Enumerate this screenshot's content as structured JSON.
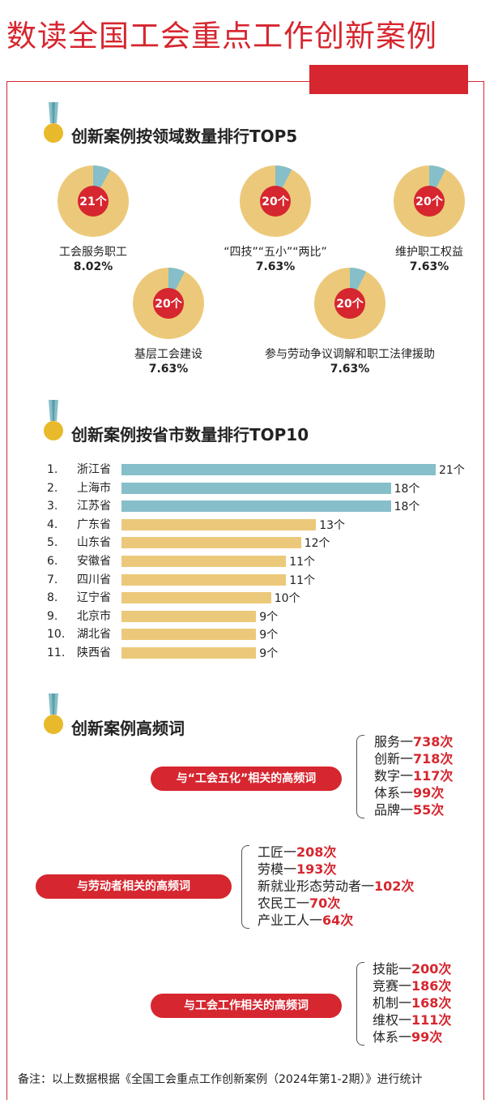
{
  "page": {
    "title": "数读全国工会重点工作创新案例",
    "footnote": "备注：以上数据根据《全国工会重点工作创新案例（2024年第1-2期）》进行统计"
  },
  "colors": {
    "red": "#d6262f",
    "teal": "#86bfc9",
    "gold": "#ecc97a"
  },
  "sections": {
    "s1": "创新案例按领域数量排行TOP5",
    "s2": "创新案例按省市数量排行TOP10",
    "s3": "创新案例高频词"
  },
  "donuts": [
    {
      "count": "21个",
      "label": "工会服务职工",
      "pct": "8.02%",
      "share": 0.0802
    },
    {
      "count": "20个",
      "label": "“四技”“五小”“两比”",
      "pct": "7.63%",
      "share": 0.0763
    },
    {
      "count": "20个",
      "label": "维护职工权益",
      "pct": "7.63%",
      "share": 0.0763
    },
    {
      "count": "20个",
      "label": "基层工会建设",
      "pct": "7.63%",
      "share": 0.0763
    },
    {
      "count": "20个",
      "label": "参与劳动争议调解和职工法律援助",
      "pct": "7.63%",
      "share": 0.0763
    }
  ],
  "chart_data": {
    "type": "bar",
    "title": "创新案例按省市数量排行TOP10",
    "categories": [
      "浙江省",
      "上海市",
      "江苏省",
      "广东省",
      "山东省",
      "安徽省",
      "四川省",
      "辽宁省",
      "北京市",
      "湖北省",
      "陕西省"
    ],
    "ranks": [
      "1.",
      "2.",
      "3.",
      "4.",
      "5.",
      "6.",
      "7.",
      "8.",
      "9.",
      "10.",
      "11."
    ],
    "values": [
      21,
      18,
      18,
      13,
      12,
      11,
      11,
      10,
      9,
      9,
      9
    ],
    "value_labels": [
      "21个",
      "18个",
      "18个",
      "13个",
      "12个",
      "11个",
      "11个",
      "10个",
      "9个",
      "9个",
      "9个"
    ],
    "highlight_top": 3
  },
  "keywords": [
    {
      "tag": "与“工会五化”相关的高频词",
      "items": [
        {
          "word": "服务一",
          "count": "738次"
        },
        {
          "word": "创新一",
          "count": "718次"
        },
        {
          "word": "数字一",
          "count": "117次"
        },
        {
          "word": "体系一",
          "count": "99次"
        },
        {
          "word": "品牌一",
          "count": "55次"
        }
      ]
    },
    {
      "tag": "与劳动者相关的高频词",
      "items": [
        {
          "word": "工匠一",
          "count": "208次"
        },
        {
          "word": "劳模一",
          "count": "193次"
        },
        {
          "word": "新就业形态劳动者一",
          "count": "102次"
        },
        {
          "word": "农民工一",
          "count": "70次"
        },
        {
          "word": "产业工人一",
          "count": "64次"
        }
      ]
    },
    {
      "tag": "与工会工作相关的高频词",
      "items": [
        {
          "word": "技能一",
          "count": "200次"
        },
        {
          "word": "竞赛一",
          "count": "186次"
        },
        {
          "word": "机制一",
          "count": "168次"
        },
        {
          "word": "维权一",
          "count": "111次"
        },
        {
          "word": "体系一",
          "count": "99次"
        }
      ]
    }
  ]
}
